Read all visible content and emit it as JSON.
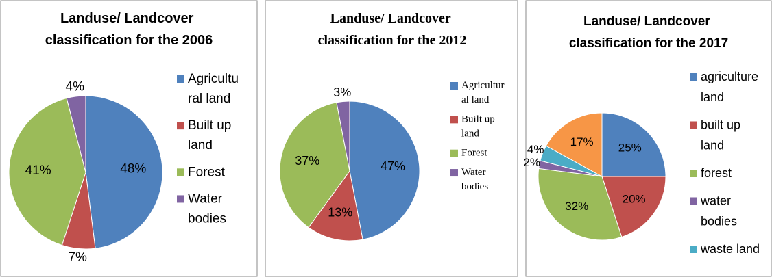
{
  "chart_data": [
    {
      "type": "pie",
      "title": "Landuse/ Landcover classification for the 2006",
      "categories": [
        "Agricultural land",
        "Built up land",
        "Forest",
        "Water bodies"
      ],
      "values": [
        48,
        7,
        41,
        4
      ],
      "value_labels": [
        "48%",
        "7%",
        "41%",
        "4%"
      ],
      "colors": [
        "#4f81bd",
        "#c0504d",
        "#9bbb59",
        "#8064a2"
      ],
      "legend": "right"
    },
    {
      "type": "pie",
      "title": "Landuse/ Landcover classification for the 2012",
      "categories": [
        "Agricultural land",
        "Built up land",
        "Forest",
        "Water bodies"
      ],
      "values": [
        47,
        13,
        37,
        3
      ],
      "value_labels": [
        "47%",
        "13%",
        "37%",
        "3%"
      ],
      "colors": [
        "#4f81bd",
        "#c0504d",
        "#9bbb59",
        "#8064a2"
      ],
      "legend": "right"
    },
    {
      "type": "pie",
      "title": "Landuse/ Landcover classification for the 2017",
      "categories": [
        "agriculture land",
        "built up land",
        "forest",
        "water bodies",
        "waste land",
        null
      ],
      "values": [
        25,
        20,
        32,
        2,
        4,
        17
      ],
      "value_labels": [
        "25%",
        "20%",
        "32%",
        "2%",
        "4%",
        "17%"
      ],
      "colors": [
        "#4f81bd",
        "#c0504d",
        "#9bbb59",
        "#8064a2",
        "#4bacc6",
        "#f79646"
      ],
      "legend": "right"
    }
  ]
}
